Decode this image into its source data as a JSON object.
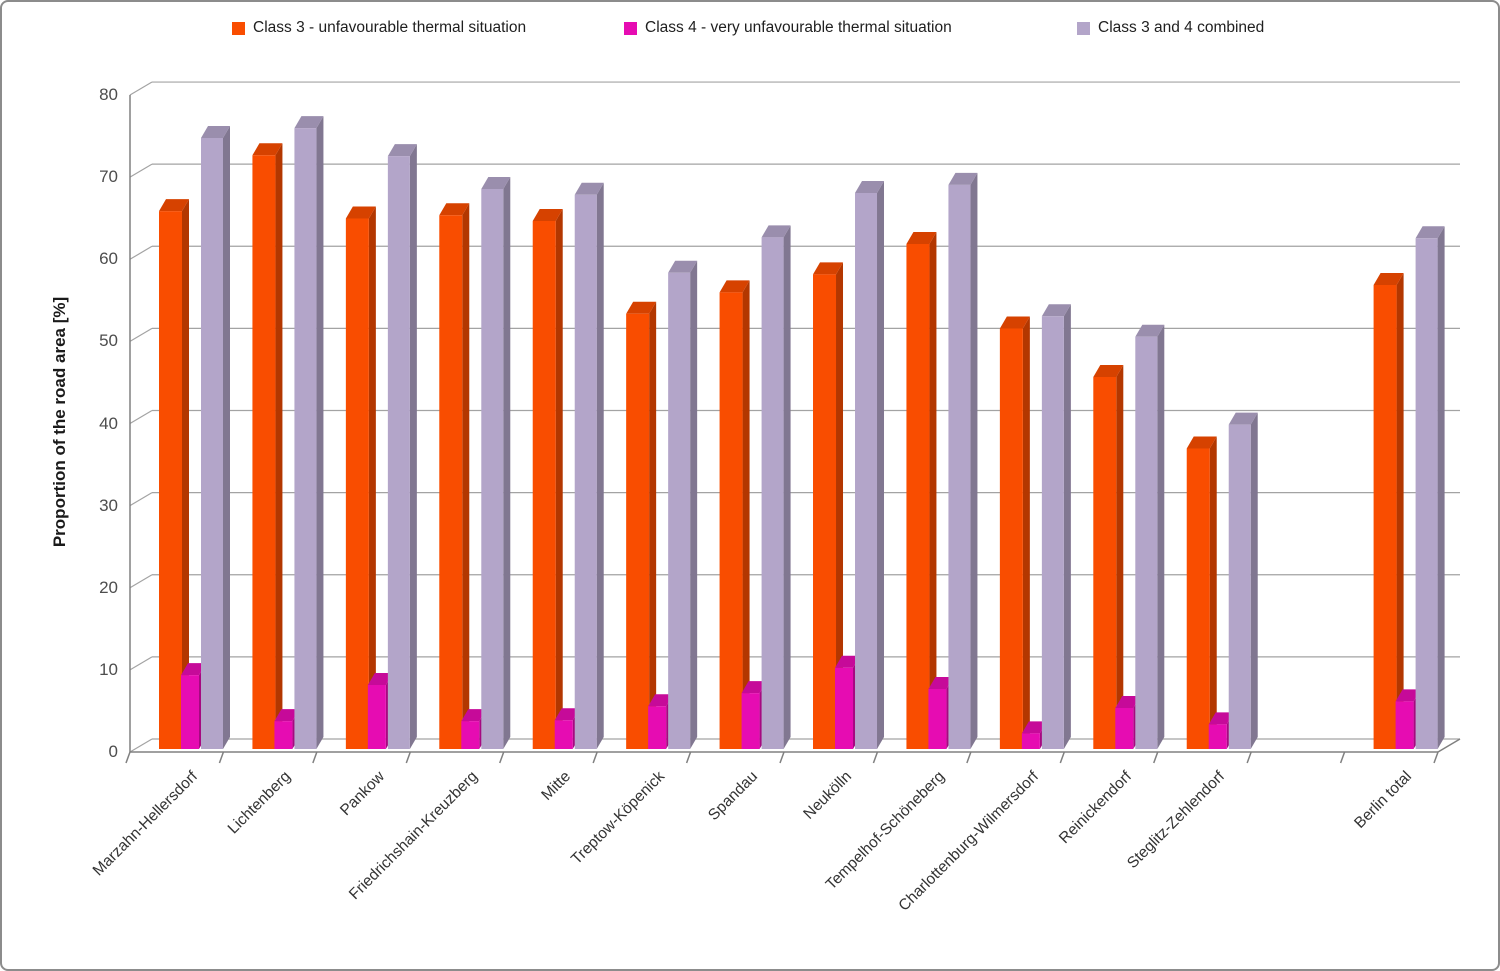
{
  "chart_data": {
    "type": "bar",
    "title": "",
    "ylabel": "Proportion of the road area [%]",
    "xlabel": "",
    "ylim": [
      0,
      80
    ],
    "y_ticks": [
      0,
      10,
      20,
      30,
      40,
      50,
      60,
      70,
      80
    ],
    "grid": true,
    "legend_position": "top",
    "style": "3d-clustered-columns",
    "categories": [
      "Marzahn-Hellersdorf",
      "Lichtenberg",
      "Pankow",
      "Friedrichshain-Kreuzberg",
      "Mitte",
      "Treptow-Köpenick",
      "Spandau",
      "Neukölln",
      "Tempelhof-Schöneberg",
      "Charlottenburg-Wilmersdorf",
      "Reinickendorf",
      "Steglitz-Zehlendorf",
      "",
      "Berlin total"
    ],
    "series": [
      {
        "key": "class3",
        "name": "Class 3 - unfavourable thermal situation",
        "color": "#f94d00",
        "values": [
          65.5,
          72.3,
          64.6,
          65.0,
          64.3,
          53.0,
          55.6,
          57.8,
          61.5,
          51.2,
          45.3,
          36.6,
          null,
          56.5
        ]
      },
      {
        "key": "class4",
        "name": "Class 4 - very unfavourable thermal situation",
        "color": "#e60cb2",
        "values": [
          9.0,
          3.4,
          7.8,
          3.4,
          3.5,
          5.2,
          6.8,
          9.9,
          7.3,
          1.9,
          5.0,
          3.0,
          null,
          5.8
        ]
      },
      {
        "key": "class3and4",
        "name": "Class 3 and 4 combined",
        "color": "#b3a5c9",
        "values": [
          74.4,
          75.6,
          72.2,
          68.2,
          67.5,
          58.0,
          62.3,
          67.7,
          68.7,
          52.7,
          50.2,
          39.5,
          null,
          62.2
        ]
      }
    ]
  },
  "colors": {
    "gridline": "#a3a3a3",
    "axis_line": "#808080",
    "y_tick_label": "#4d4d4d",
    "x_tick_label": "#333333",
    "frame_border": "#8c8c8c"
  }
}
